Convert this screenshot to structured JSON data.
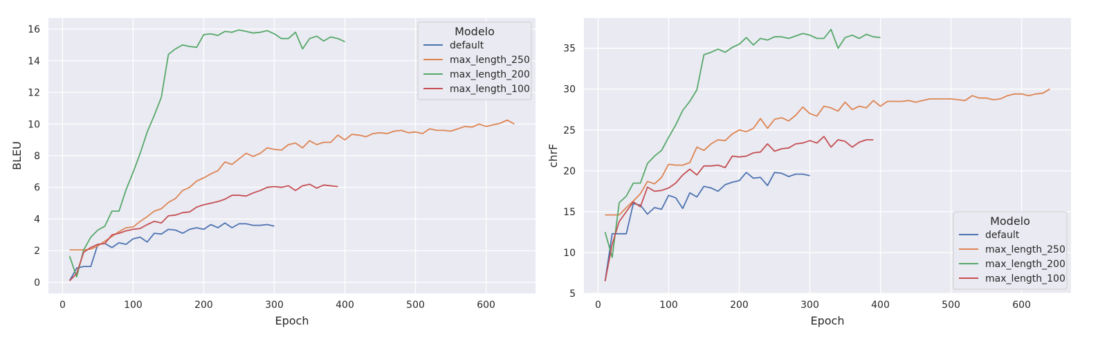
{
  "colors": {
    "default": "#4c72b0",
    "max_length_250": "#dd8452",
    "max_length_200": "#55a868",
    "max_length_100": "#c44e52",
    "plot_background": "#eaeaf2",
    "grid": "#ffffff"
  },
  "chart_data": [
    {
      "type": "line",
      "title": "",
      "xlabel": "Epoch",
      "ylabel": "BLEU",
      "xlim": [
        -20,
        670
      ],
      "ylim": [
        -0.7,
        16.7
      ],
      "xticks": [
        0,
        100,
        200,
        300,
        400,
        500,
        600
      ],
      "yticks": [
        0,
        2,
        4,
        6,
        8,
        10,
        12,
        14,
        16
      ],
      "grid": true,
      "legend": {
        "title": "Modelo",
        "placement": "top-right"
      },
      "series": [
        {
          "name": "default",
          "color": "#4c72b0",
          "x": [
            10,
            20,
            30,
            40,
            50,
            60,
            70,
            80,
            90,
            100,
            110,
            120,
            130,
            140,
            150,
            160,
            170,
            180,
            190,
            200,
            210,
            220,
            230,
            240,
            250,
            260,
            270,
            280,
            290,
            300
          ],
          "y": [
            0.1,
            0.9,
            1.0,
            1.0,
            2.4,
            2.45,
            2.2,
            2.5,
            2.4,
            2.75,
            2.85,
            2.55,
            3.1,
            3.05,
            3.35,
            3.3,
            3.1,
            3.35,
            3.45,
            3.35,
            3.65,
            3.45,
            3.75,
            3.45,
            3.7,
            3.7,
            3.6,
            3.6,
            3.65,
            3.55
          ]
        },
        {
          "name": "max_length_250",
          "color": "#dd8452",
          "x": [
            10,
            20,
            30,
            40,
            50,
            60,
            70,
            80,
            90,
            100,
            110,
            120,
            130,
            140,
            150,
            160,
            170,
            180,
            190,
            200,
            210,
            220,
            230,
            240,
            250,
            260,
            270,
            280,
            290,
            300,
            310,
            320,
            330,
            340,
            350,
            360,
            370,
            380,
            390,
            400,
            410,
            420,
            430,
            440,
            450,
            460,
            470,
            480,
            490,
            500,
            510,
            520,
            530,
            540,
            550,
            560,
            570,
            580,
            590,
            600,
            610,
            620,
            630,
            640
          ],
          "y": [
            2.05,
            2.05,
            2.05,
            2.1,
            2.3,
            2.6,
            2.9,
            3.2,
            3.45,
            3.5,
            3.85,
            4.15,
            4.5,
            4.65,
            5.05,
            5.3,
            5.8,
            6.0,
            6.4,
            6.6,
            6.85,
            7.05,
            7.6,
            7.45,
            7.8,
            8.15,
            7.95,
            8.15,
            8.5,
            8.4,
            8.35,
            8.7,
            8.8,
            8.5,
            8.95,
            8.7,
            8.85,
            8.85,
            9.3,
            9.0,
            9.35,
            9.3,
            9.2,
            9.4,
            9.45,
            9.4,
            9.55,
            9.6,
            9.45,
            9.5,
            9.4,
            9.7,
            9.6,
            9.6,
            9.55,
            9.7,
            9.85,
            9.8,
            10.0,
            9.85,
            9.95,
            10.05,
            10.25,
            10.0
          ]
        },
        {
          "name": "max_length_200",
          "color": "#55a868",
          "x": [
            10,
            20,
            30,
            40,
            50,
            60,
            70,
            80,
            90,
            100,
            110,
            120,
            130,
            140,
            150,
            160,
            170,
            180,
            190,
            200,
            210,
            220,
            230,
            240,
            250,
            260,
            270,
            280,
            290,
            300,
            310,
            320,
            330,
            340,
            350,
            360,
            370,
            380,
            390,
            400
          ],
          "y": [
            1.65,
            0.35,
            2.05,
            2.85,
            3.3,
            3.55,
            4.5,
            4.5,
            5.85,
            6.95,
            8.15,
            9.5,
            10.55,
            11.7,
            14.4,
            14.75,
            15.0,
            14.9,
            14.85,
            15.65,
            15.7,
            15.6,
            15.85,
            15.8,
            15.95,
            15.85,
            15.75,
            15.8,
            15.9,
            15.7,
            15.4,
            15.4,
            15.8,
            14.75,
            15.4,
            15.55,
            15.25,
            15.5,
            15.4,
            15.2
          ]
        },
        {
          "name": "max_length_100",
          "color": "#c44e52",
          "x": [
            10,
            20,
            30,
            40,
            50,
            60,
            70,
            80,
            90,
            100,
            110,
            120,
            130,
            140,
            150,
            160,
            170,
            180,
            190,
            200,
            210,
            220,
            230,
            240,
            250,
            260,
            270,
            280,
            290,
            300,
            310,
            320,
            330,
            340,
            350,
            360,
            370,
            380,
            390
          ],
          "y": [
            0.1,
            0.55,
            1.9,
            2.2,
            2.4,
            2.45,
            3.0,
            3.1,
            3.25,
            3.35,
            3.4,
            3.65,
            3.85,
            3.75,
            4.2,
            4.25,
            4.4,
            4.45,
            4.75,
            4.9,
            5.0,
            5.1,
            5.25,
            5.5,
            5.5,
            5.45,
            5.65,
            5.8,
            6.0,
            6.05,
            6.0,
            6.1,
            5.8,
            6.1,
            6.2,
            5.95,
            6.15,
            6.1,
            6.05
          ]
        }
      ]
    },
    {
      "type": "line",
      "title": "",
      "xlabel": "Epoch",
      "ylabel": "chrF",
      "xlim": [
        -20,
        670
      ],
      "ylim": [
        5,
        38.7
      ],
      "xticks": [
        0,
        100,
        200,
        300,
        400,
        500,
        600
      ],
      "yticks": [
        5,
        10,
        15,
        20,
        25,
        30,
        35
      ],
      "grid": true,
      "legend": {
        "title": "Modelo",
        "placement": "bottom-right"
      },
      "series": [
        {
          "name": "default",
          "color": "#4c72b0",
          "x": [
            10,
            20,
            30,
            40,
            50,
            60,
            70,
            80,
            90,
            100,
            110,
            120,
            130,
            140,
            150,
            160,
            170,
            180,
            190,
            200,
            210,
            220,
            230,
            240,
            250,
            260,
            270,
            280,
            290,
            300
          ],
          "y": [
            6.5,
            12.3,
            12.3,
            12.3,
            16.0,
            15.8,
            14.7,
            15.5,
            15.3,
            17.0,
            16.7,
            15.4,
            17.3,
            16.8,
            18.1,
            17.9,
            17.5,
            18.3,
            18.6,
            18.8,
            19.8,
            19.1,
            19.2,
            18.2,
            19.8,
            19.7,
            19.3,
            19.6,
            19.6,
            19.4
          ]
        },
        {
          "name": "max_length_250",
          "color": "#dd8452",
          "x": [
            10,
            20,
            30,
            40,
            50,
            60,
            70,
            80,
            90,
            100,
            110,
            120,
            130,
            140,
            150,
            160,
            170,
            180,
            190,
            200,
            210,
            220,
            230,
            240,
            250,
            260,
            270,
            280,
            290,
            300,
            310,
            320,
            330,
            340,
            350,
            360,
            370,
            380,
            390,
            400,
            410,
            420,
            430,
            440,
            450,
            460,
            470,
            480,
            490,
            500,
            510,
            520,
            530,
            540,
            550,
            560,
            570,
            580,
            590,
            600,
            610,
            620,
            630,
            640
          ],
          "y": [
            14.6,
            14.6,
            14.6,
            15.5,
            16.3,
            17.2,
            18.7,
            18.4,
            19.2,
            20.8,
            20.7,
            20.7,
            21.0,
            22.9,
            22.5,
            23.3,
            23.8,
            23.7,
            24.5,
            25.0,
            24.8,
            25.2,
            26.4,
            25.2,
            26.3,
            26.5,
            26.1,
            26.8,
            27.8,
            27.0,
            26.7,
            27.9,
            27.7,
            27.3,
            28.4,
            27.5,
            27.9,
            27.7,
            28.6,
            27.9,
            28.5,
            28.5,
            28.5,
            28.6,
            28.4,
            28.6,
            28.8,
            28.8,
            28.8,
            28.8,
            28.7,
            28.6,
            29.2,
            28.9,
            28.9,
            28.7,
            28.8,
            29.2,
            29.4,
            29.4,
            29.2,
            29.4,
            29.5,
            30.0
          ]
        },
        {
          "name": "max_length_200",
          "color": "#55a868",
          "x": [
            10,
            20,
            30,
            40,
            50,
            60,
            70,
            80,
            90,
            100,
            110,
            120,
            130,
            140,
            150,
            160,
            170,
            180,
            190,
            200,
            210,
            220,
            230,
            240,
            250,
            260,
            270,
            280,
            290,
            300,
            310,
            320,
            330,
            340,
            350,
            360,
            370,
            380,
            390,
            400
          ],
          "y": [
            12.5,
            9.4,
            16.1,
            16.9,
            18.5,
            18.5,
            20.9,
            21.8,
            22.5,
            24.1,
            25.6,
            27.4,
            28.5,
            29.9,
            34.2,
            34.5,
            34.9,
            34.5,
            35.1,
            35.5,
            36.3,
            35.4,
            36.2,
            36.0,
            36.4,
            36.4,
            36.2,
            36.5,
            36.8,
            36.6,
            36.2,
            36.2,
            37.3,
            35.0,
            36.3,
            36.6,
            36.2,
            36.7,
            36.4,
            36.3
          ]
        },
        {
          "name": "max_length_100",
          "color": "#c44e52",
          "x": [
            10,
            20,
            30,
            40,
            50,
            60,
            70,
            80,
            90,
            100,
            110,
            120,
            130,
            140,
            150,
            160,
            170,
            180,
            190,
            200,
            210,
            220,
            230,
            240,
            250,
            260,
            270,
            280,
            290,
            300,
            310,
            320,
            330,
            340,
            350,
            360,
            370,
            380,
            390
          ],
          "y": [
            6.5,
            11.0,
            13.8,
            15.0,
            16.2,
            15.6,
            18.0,
            17.5,
            17.6,
            17.9,
            18.5,
            19.5,
            20.2,
            19.5,
            20.6,
            20.6,
            20.7,
            20.4,
            21.8,
            21.7,
            21.8,
            22.2,
            22.3,
            23.3,
            22.4,
            22.7,
            22.8,
            23.3,
            23.4,
            23.7,
            23.4,
            24.2,
            22.9,
            23.8,
            23.6,
            22.9,
            23.5,
            23.8,
            23.8
          ]
        }
      ]
    }
  ]
}
